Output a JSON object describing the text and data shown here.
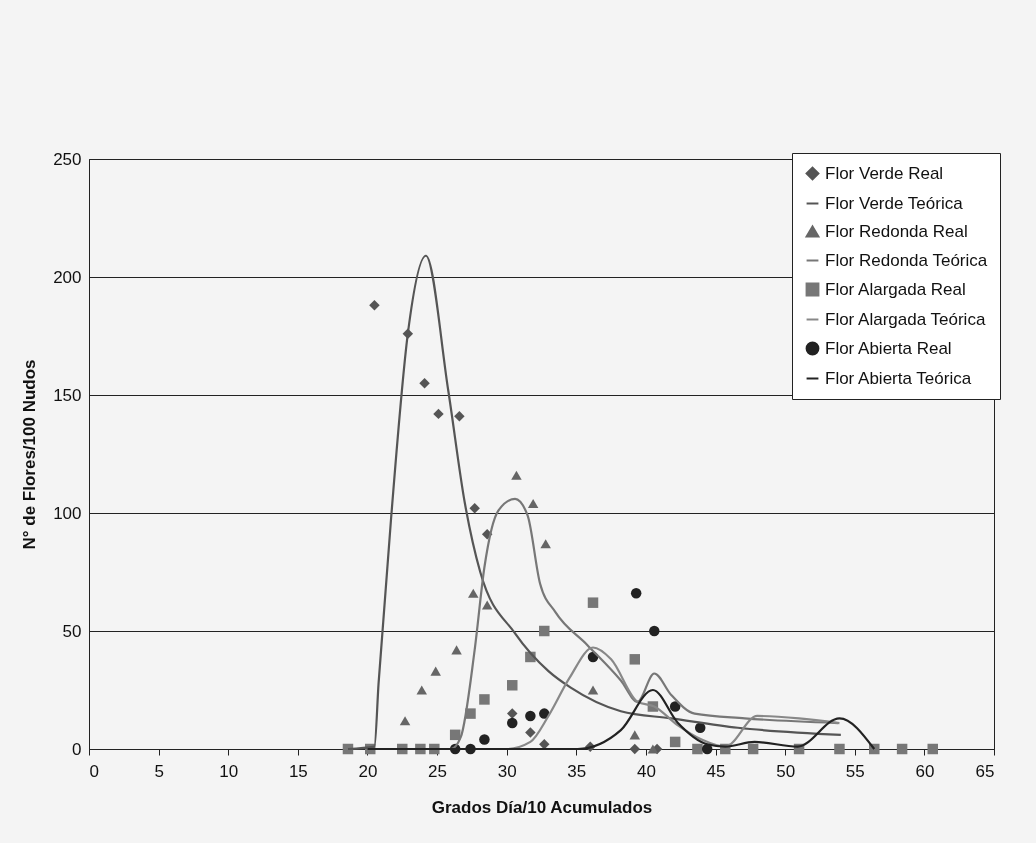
{
  "chart_data": {
    "type": "scatter",
    "xlabel": "Grados Día/10 Acumulados",
    "ylabel": "N° de Flores/100 Nudos",
    "xlim": [
      0,
      65
    ],
    "xticks": [
      0,
      5,
      10,
      15,
      20,
      25,
      30,
      35,
      40,
      45,
      50,
      55,
      60,
      65
    ],
    "ylim": [
      0,
      250
    ],
    "yticks": [
      0,
      50,
      100,
      150,
      200,
      250
    ],
    "grid": "y",
    "legend": "top right",
    "series": [
      {
        "name": "Flor Verde Real",
        "marker": "diamond",
        "color": "#555555",
        "x": [
          20.5,
          22.9,
          24.1,
          25.1,
          26.6,
          27.7,
          28.6,
          30.4,
          31.7,
          32.7,
          36.0,
          39.2,
          40.8
        ],
        "values": [
          188,
          176,
          155,
          142,
          141,
          102,
          91,
          15,
          7,
          2,
          1,
          0,
          0
        ]
      },
      {
        "name": "Flor Verde Teórica",
        "type": "line",
        "color": "#555555",
        "x": [
          18.6,
          20.5,
          20.8,
          21.7,
          22.9,
          24.2,
          25.8,
          27.0,
          28.1,
          30.6,
          33,
          34.6,
          38.2,
          41.8,
          46.6,
          54
        ],
        "values": [
          0,
          1,
          28,
          98,
          176,
          209,
          152,
          104,
          75,
          49,
          33,
          26,
          16,
          13,
          9,
          6
        ]
      },
      {
        "name": "Flor Redonda Real",
        "marker": "triangle",
        "color": "#666666",
        "x": [
          22.7,
          23.9,
          24.9,
          26.4,
          27.6,
          28.6,
          30.7,
          31.9,
          32.8,
          36.2,
          39.2,
          40.5
        ],
        "values": [
          12,
          25,
          33,
          42,
          66,
          61,
          116,
          104,
          87,
          25,
          6,
          0
        ]
      },
      {
        "name": "Flor Redonda Teórica",
        "type": "line",
        "color": "#777777",
        "x": [
          20,
          26,
          26.7,
          27.7,
          28.4,
          29.4,
          30.6,
          31.5,
          32.4,
          33.5,
          35.8,
          38.2,
          39.4,
          40.6,
          41.8,
          43.5,
          47.1,
          53.8
        ],
        "values": [
          0,
          0,
          5,
          42,
          77,
          101,
          106,
          99,
          70,
          58,
          44,
          29,
          20,
          32,
          23,
          15,
          13,
          11
        ]
      },
      {
        "name": "Flor Alargada Real",
        "marker": "square",
        "color": "#777777",
        "x": [
          18.6,
          20.2,
          22.5,
          23.8,
          24.8,
          26.3,
          27.4,
          28.4,
          30.4,
          31.7,
          32.7,
          36.2,
          39.2,
          40.5,
          42.1,
          43.7,
          45.7,
          47.7,
          51.0,
          53.9,
          56.4,
          58.4,
          60.6
        ],
        "values": [
          0,
          0,
          0,
          0,
          0,
          6,
          15,
          21,
          27,
          39,
          50,
          62,
          38,
          18,
          3,
          0,
          0,
          0,
          0,
          0,
          0,
          0,
          0
        ]
      },
      {
        "name": "Flor Alargada Teórica",
        "type": "line",
        "color": "#888888",
        "x": [
          20,
          30,
          31.7,
          33,
          34.5,
          36.2,
          37.5,
          39.4,
          40.6,
          42.3,
          44,
          45.7,
          48,
          51,
          53.9
        ],
        "values": [
          0,
          0,
          3,
          14,
          30,
          43,
          38,
          20,
          18,
          10,
          4,
          1,
          14,
          13,
          11
        ]
      },
      {
        "name": "Flor Abierta Real",
        "marker": "circle",
        "color": "#222222",
        "x": [
          26.3,
          27.4,
          28.4,
          30.4,
          31.7,
          32.7,
          36.2,
          39.3,
          40.6,
          42.1,
          43.9,
          44.4
        ],
        "values": [
          0,
          0,
          4,
          11,
          14,
          15,
          39,
          66,
          50,
          18,
          9,
          0
        ]
      },
      {
        "name": "Flor Abierta Teórica",
        "type": "line",
        "color": "#222222",
        "x": [
          20,
          35.1,
          38.2,
          40.5,
          42.3,
          44.4,
          45.7,
          47.8,
          50.9,
          53.9,
          56.4
        ],
        "values": [
          0,
          0,
          8,
          25,
          11,
          2,
          1,
          3,
          1,
          13,
          0
        ]
      }
    ]
  }
}
